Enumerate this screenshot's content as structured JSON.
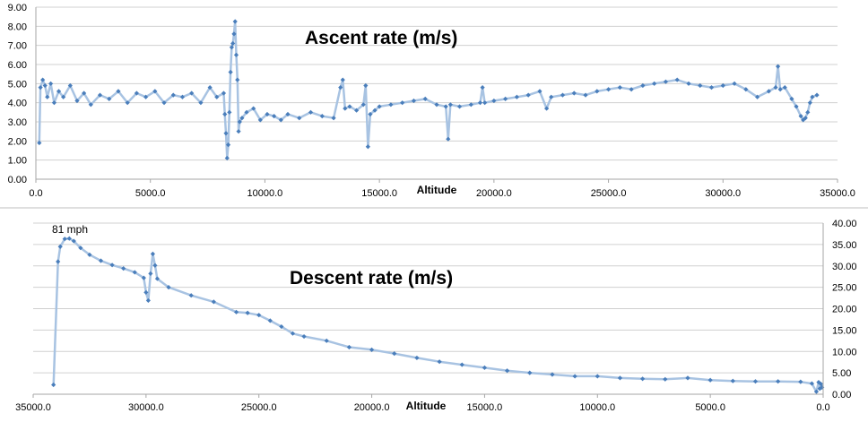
{
  "colors": {
    "line": "#a8c3e2",
    "marker": "#4a7ebb",
    "grid": "#d0d0d0",
    "axis": "#a6a6a6"
  },
  "chart_data": [
    {
      "type": "scatter",
      "title": "Ascent rate (m/s)",
      "xlabel": "Altitude",
      "ylabel": "",
      "xlim": [
        0,
        35000
      ],
      "ylim": [
        0,
        9
      ],
      "x_reversed": false,
      "y_axis_side": "left",
      "xticks": [
        0,
        5000,
        10000,
        15000,
        20000,
        25000,
        30000,
        35000
      ],
      "xtick_labels": [
        "0.0",
        "5000.0",
        "10000.0",
        "15000.0",
        "20000.0",
        "25000.0",
        "30000.0",
        "35000.0"
      ],
      "yticks": [
        0,
        1,
        2,
        3,
        4,
        5,
        6,
        7,
        8,
        9
      ],
      "ytick_labels": [
        "0.00",
        "1.00",
        "2.00",
        "3.00",
        "4.00",
        "5.00",
        "6.00",
        "7.00",
        "8.00",
        "9.00"
      ],
      "series": [
        {
          "name": "Ascent rate (m/s)",
          "x": [
            150,
            200,
            300,
            400,
            500,
            650,
            800,
            1000,
            1200,
            1500,
            1800,
            2100,
            2400,
            2800,
            3200,
            3600,
            4000,
            4400,
            4800,
            5200,
            5600,
            6000,
            6400,
            6800,
            7200,
            7600,
            7900,
            8200,
            8250,
            8300,
            8350,
            8400,
            8450,
            8500,
            8550,
            8600,
            8650,
            8700,
            8750,
            8800,
            8850,
            8900,
            9000,
            9200,
            9500,
            9800,
            10100,
            10400,
            10700,
            11000,
            11500,
            12000,
            12500,
            13000,
            13300,
            13400,
            13500,
            13700,
            14000,
            14300,
            14400,
            14500,
            14600,
            14800,
            15000,
            15500,
            16000,
            16500,
            17000,
            17500,
            17900,
            18000,
            18100,
            18500,
            19000,
            19400,
            19500,
            19600,
            20000,
            20500,
            21000,
            21500,
            22000,
            22300,
            22500,
            23000,
            23500,
            24000,
            24500,
            25000,
            25500,
            26000,
            26500,
            27000,
            27500,
            28000,
            28500,
            29000,
            29500,
            30000,
            30500,
            31000,
            31500,
            32000,
            32300,
            32400,
            32500,
            32700,
            33000,
            33200,
            33400,
            33500,
            33600,
            33700,
            33800,
            33900,
            34100
          ],
          "y": [
            1.9,
            4.8,
            5.2,
            4.9,
            4.3,
            5.0,
            4.0,
            4.6,
            4.3,
            4.9,
            4.1,
            4.5,
            3.9,
            4.4,
            4.2,
            4.6,
            4.0,
            4.5,
            4.3,
            4.6,
            4.0,
            4.4,
            4.3,
            4.5,
            4.0,
            4.8,
            4.3,
            4.5,
            3.4,
            2.4,
            1.1,
            1.8,
            3.5,
            5.6,
            6.9,
            7.1,
            7.6,
            8.25,
            6.5,
            5.2,
            2.5,
            3.0,
            3.2,
            3.5,
            3.7,
            3.1,
            3.4,
            3.3,
            3.1,
            3.4,
            3.2,
            3.5,
            3.3,
            3.2,
            4.8,
            5.2,
            3.7,
            3.8,
            3.6,
            3.9,
            4.9,
            1.7,
            3.4,
            3.6,
            3.8,
            3.9,
            4.0,
            4.1,
            4.2,
            3.9,
            3.8,
            2.1,
            3.9,
            3.8,
            3.9,
            4.0,
            4.8,
            4.0,
            4.1,
            4.2,
            4.3,
            4.4,
            4.6,
            3.7,
            4.3,
            4.4,
            4.5,
            4.4,
            4.6,
            4.7,
            4.8,
            4.7,
            4.9,
            5.0,
            5.1,
            5.2,
            5.0,
            4.9,
            4.8,
            4.9,
            5.0,
            4.7,
            4.3,
            4.6,
            4.8,
            5.9,
            4.7,
            4.8,
            4.2,
            3.8,
            3.3,
            3.1,
            3.2,
            3.5,
            4.0,
            4.3,
            4.4
          ]
        }
      ]
    },
    {
      "type": "scatter",
      "title": "Descent rate (m/s)",
      "xlabel": "Altitude",
      "ylabel": "",
      "xlim": [
        0,
        35000
      ],
      "ylim": [
        0,
        40
      ],
      "x_reversed": true,
      "y_axis_side": "right",
      "xticks": [
        35000,
        30000,
        25000,
        20000,
        15000,
        10000,
        5000,
        0
      ],
      "xtick_labels": [
        "35000.0",
        "30000.0",
        "25000.0",
        "20000.0",
        "15000.0",
        "10000.0",
        "5000.0",
        "0.0"
      ],
      "yticks": [
        0,
        5,
        10,
        15,
        20,
        25,
        30,
        35,
        40
      ],
      "ytick_labels": [
        "0.00",
        "5.00",
        "10.00",
        "15.00",
        "20.00",
        "25.00",
        "30.00",
        "35.00",
        "40.00"
      ],
      "annotations": [
        {
          "text": "81 mph",
          "x": 33900,
          "y": 36.3
        }
      ],
      "series": [
        {
          "name": "Descent rate (m/s)",
          "x": [
            34100,
            33900,
            33800,
            33600,
            33400,
            33200,
            32900,
            32500,
            32000,
            31500,
            31000,
            30500,
            30100,
            30000,
            29900,
            29800,
            29700,
            29600,
            29500,
            29000,
            28000,
            27000,
            26000,
            25500,
            25000,
            24500,
            24000,
            23500,
            23000,
            22000,
            21000,
            20000,
            19000,
            18000,
            17000,
            16000,
            15000,
            14000,
            13000,
            12000,
            11000,
            10000,
            9000,
            8000,
            7000,
            6000,
            5000,
            4000,
            3000,
            2000,
            1000,
            500,
            300,
            200,
            150,
            100,
            50
          ],
          "y": [
            2.2,
            31.0,
            34.5,
            36.3,
            36.4,
            35.8,
            34.2,
            32.6,
            31.2,
            30.2,
            29.4,
            28.5,
            27.2,
            23.8,
            21.9,
            28.2,
            32.8,
            30.1,
            27.0,
            25.0,
            23.1,
            21.6,
            19.2,
            19.0,
            18.5,
            17.2,
            15.8,
            14.2,
            13.5,
            12.5,
            11.0,
            10.4,
            9.5,
            8.5,
            7.6,
            6.9,
            6.2,
            5.5,
            5.0,
            4.6,
            4.2,
            4.2,
            3.8,
            3.6,
            3.5,
            3.8,
            3.3,
            3.1,
            3.0,
            3.0,
            2.9,
            2.5,
            0.6,
            2.8,
            1.3,
            2.4,
            1.6
          ]
        }
      ]
    }
  ]
}
